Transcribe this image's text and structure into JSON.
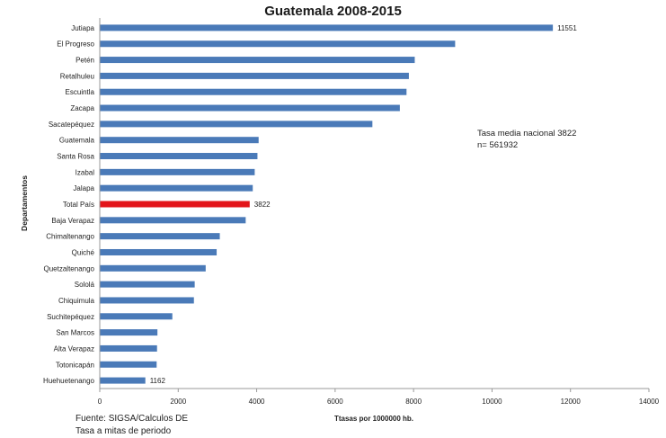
{
  "header": {
    "title": "Guatemala  2008-2015"
  },
  "annotation": {
    "line1": "Tasa media nacional  3822",
    "line2": "n= 561932"
  },
  "source": {
    "line1": "Fuente: SIGSA/Calculos  DE",
    "line2": "Tasa a mitas de  periodo"
  },
  "chart_data": {
    "type": "bar",
    "orientation": "horizontal",
    "xlabel": "Ttasas por 1000000 hb.",
    "ylabel": "Departamentos",
    "xlim": [
      0,
      14000
    ],
    "xticks": [
      0,
      2000,
      4000,
      6000,
      8000,
      10000,
      12000,
      14000
    ],
    "grid": false,
    "categories": [
      "Jutiapa",
      "El Progreso",
      "Petén",
      "Retalhuleu",
      "Escuintla",
      "Zacapa",
      "Sacatepéquez",
      "Guatemala",
      "Santa Rosa",
      "Izabal",
      "Jalapa",
      "Total País",
      "Baja Verapaz",
      "Chimaltenango",
      "Quiché",
      "Quetzaltenango",
      "Sololá",
      "Chiquimula",
      "Suchitepéquez",
      "San Marcos",
      "Alta Verapaz",
      "Totonicapán",
      "Huehuetenango"
    ],
    "values": [
      11551,
      9060,
      8030,
      7880,
      7820,
      7650,
      6950,
      4050,
      4020,
      3950,
      3900,
      3822,
      3720,
      3060,
      2980,
      2700,
      2420,
      2400,
      1850,
      1470,
      1460,
      1450,
      1162
    ],
    "data_labels": {
      "Jutiapa": "11551",
      "Total País": "3822",
      "Huehuetenango": "1162"
    },
    "highlight": "Total País",
    "colors": {
      "bar": "#4a7ab8",
      "highlight": "#e3151a",
      "axis": "#999999"
    }
  }
}
